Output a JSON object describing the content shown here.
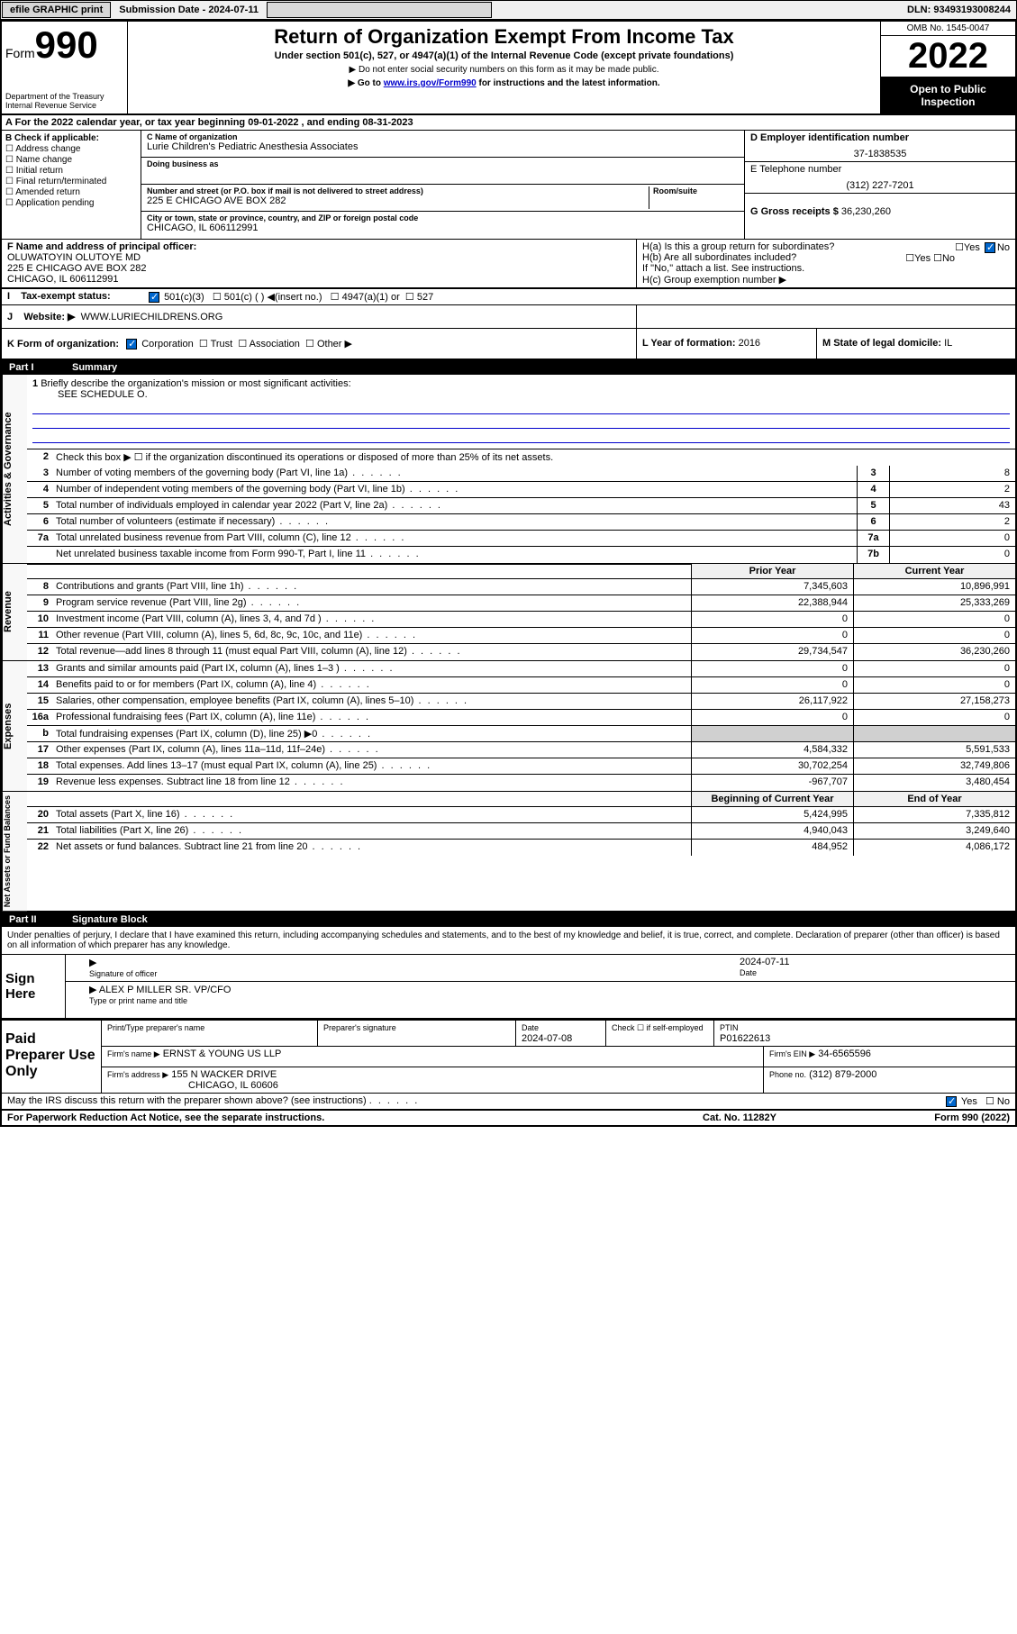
{
  "topbar": {
    "efile": "efile GRAPHIC print",
    "submission": "Submission Date - 2024-07-11",
    "dln": "DLN: 93493193008244"
  },
  "header": {
    "form_label": "Form",
    "form_num": "990",
    "dept": "Department of the Treasury",
    "irs": "Internal Revenue Service",
    "title": "Return of Organization Exempt From Income Tax",
    "subtitle": "Under section 501(c), 527, or 4947(a)(1) of the Internal Revenue Code (except private foundations)",
    "note1": "▶ Do not enter social security numbers on this form as it may be made public.",
    "note2_pre": "▶ Go to ",
    "note2_link": "www.irs.gov/Form990",
    "note2_post": " for instructions and the latest information.",
    "omb": "OMB No. 1545-0047",
    "year": "2022",
    "open_public": "Open to Public Inspection"
  },
  "row_a": "For the 2022 calendar year, or tax year beginning 09-01-2022    , and ending 08-31-2023",
  "section_b": {
    "header": "B Check if applicable:",
    "items": [
      "Address change",
      "Name change",
      "Initial return",
      "Final return/terminated",
      "Amended return",
      "Application pending"
    ]
  },
  "section_c": {
    "name_lbl": "C Name of organization",
    "name_val": "Lurie Children's Pediatric Anesthesia Associates",
    "dba_lbl": "Doing business as",
    "dba_val": "",
    "street_lbl": "Number and street (or P.O. box if mail is not delivered to street address)",
    "room_lbl": "Room/suite",
    "street_val": "225 E CHICAGO AVE BOX 282",
    "city_lbl": "City or town, state or province, country, and ZIP or foreign postal code",
    "city_val": "CHICAGO, IL  606112991"
  },
  "section_d": {
    "ein_lbl": "D Employer identification number",
    "ein_val": "37-1838535",
    "phone_lbl": "E Telephone number",
    "phone_val": "(312) 227-7201",
    "gross_lbl": "G Gross receipts $",
    "gross_val": "36,230,260"
  },
  "section_f": {
    "lbl": "F Name and address of principal officer:",
    "name": "OLUWATOYIN OLUTOYE MD",
    "addr1": "225 E CHICAGO AVE BOX 282",
    "addr2": "CHICAGO, IL  606112991"
  },
  "section_h": {
    "ha": "H(a)  Is this a group return for subordinates?",
    "ha_ans": "No",
    "hb": "H(b)  Are all subordinates included?",
    "hb_note": "If \"No,\" attach a list. See instructions.",
    "hc": "H(c)  Group exemption number ▶"
  },
  "section_i": {
    "lbl": "Tax-exempt status:",
    "opt1": "501(c)(3)",
    "opt2": "501(c) (   ) ◀(insert no.)",
    "opt3": "4947(a)(1) or",
    "opt4": "527"
  },
  "section_j": {
    "lbl": "Website: ▶",
    "val": "WWW.LURIECHILDRENS.ORG"
  },
  "section_k": {
    "lbl": "K Form of organization:",
    "opts": [
      "Corporation",
      "Trust",
      "Association",
      "Other ▶"
    ],
    "l_lbl": "L Year of formation:",
    "l_val": "2016",
    "m_lbl": "M State of legal domicile:",
    "m_val": "IL"
  },
  "part1": {
    "name": "Part I",
    "title": "Summary",
    "line1_lbl": "Briefly describe the organization's mission or most significant activities:",
    "line1_val": "SEE SCHEDULE O.",
    "line2": "Check this box ▶ ☐  if the organization discontinued its operations or disposed of more than 25% of its net assets.",
    "vtab_ag": "Activities & Governance",
    "vtab_rev": "Revenue",
    "vtab_exp": "Expenses",
    "vtab_na": "Net Assets or Fund Balances",
    "lines_ag": [
      {
        "n": "3",
        "d": "Number of voting members of the governing body (Part VI, line 1a)",
        "b": "3",
        "v": "8"
      },
      {
        "n": "4",
        "d": "Number of independent voting members of the governing body (Part VI, line 1b)",
        "b": "4",
        "v": "2"
      },
      {
        "n": "5",
        "d": "Total number of individuals employed in calendar year 2022 (Part V, line 2a)",
        "b": "5",
        "v": "43"
      },
      {
        "n": "6",
        "d": "Total number of volunteers (estimate if necessary)",
        "b": "6",
        "v": "2"
      },
      {
        "n": "7a",
        "d": "Total unrelated business revenue from Part VIII, column (C), line 12",
        "b": "7a",
        "v": "0"
      },
      {
        "n": "",
        "d": "Net unrelated business taxable income from Form 990-T, Part I, line 11",
        "b": "7b",
        "v": "0"
      }
    ],
    "col_prior": "Prior Year",
    "col_current": "Current Year",
    "col_boy": "Beginning of Current Year",
    "col_eoy": "End of Year",
    "lines_rev": [
      {
        "n": "8",
        "d": "Contributions and grants (Part VIII, line 1h)",
        "p": "7,345,603",
        "c": "10,896,991"
      },
      {
        "n": "9",
        "d": "Program service revenue (Part VIII, line 2g)",
        "p": "22,388,944",
        "c": "25,333,269"
      },
      {
        "n": "10",
        "d": "Investment income (Part VIII, column (A), lines 3, 4, and 7d )",
        "p": "0",
        "c": "0"
      },
      {
        "n": "11",
        "d": "Other revenue (Part VIII, column (A), lines 5, 6d, 8c, 9c, 10c, and 11e)",
        "p": "0",
        "c": "0"
      },
      {
        "n": "12",
        "d": "Total revenue—add lines 8 through 11 (must equal Part VIII, column (A), line 12)",
        "p": "29,734,547",
        "c": "36,230,260"
      }
    ],
    "lines_exp": [
      {
        "n": "13",
        "d": "Grants and similar amounts paid (Part IX, column (A), lines 1–3 )",
        "p": "0",
        "c": "0"
      },
      {
        "n": "14",
        "d": "Benefits paid to or for members (Part IX, column (A), line 4)",
        "p": "0",
        "c": "0"
      },
      {
        "n": "15",
        "d": "Salaries, other compensation, employee benefits (Part IX, column (A), lines 5–10)",
        "p": "26,117,922",
        "c": "27,158,273"
      },
      {
        "n": "16a",
        "d": "Professional fundraising fees (Part IX, column (A), line 11e)",
        "p": "0",
        "c": "0"
      },
      {
        "n": "b",
        "d": "Total fundraising expenses (Part IX, column (D), line 25) ▶0",
        "p": "",
        "c": "",
        "shaded": true
      },
      {
        "n": "17",
        "d": "Other expenses (Part IX, column (A), lines 11a–11d, 11f–24e)",
        "p": "4,584,332",
        "c": "5,591,533"
      },
      {
        "n": "18",
        "d": "Total expenses. Add lines 13–17 (must equal Part IX, column (A), line 25)",
        "p": "30,702,254",
        "c": "32,749,806"
      },
      {
        "n": "19",
        "d": "Revenue less expenses. Subtract line 18 from line 12",
        "p": "-967,707",
        "c": "3,480,454"
      }
    ],
    "lines_na": [
      {
        "n": "20",
        "d": "Total assets (Part X, line 16)",
        "p": "5,424,995",
        "c": "7,335,812"
      },
      {
        "n": "21",
        "d": "Total liabilities (Part X, line 26)",
        "p": "4,940,043",
        "c": "3,249,640"
      },
      {
        "n": "22",
        "d": "Net assets or fund balances. Subtract line 21 from line 20",
        "p": "484,952",
        "c": "4,086,172"
      }
    ]
  },
  "part2": {
    "name": "Part II",
    "title": "Signature Block",
    "declaration": "Under penalties of perjury, I declare that I have examined this return, including accompanying schedules and statements, and to the best of my knowledge and belief, it is true, correct, and complete. Declaration of preparer (other than officer) is based on all information of which preparer has any knowledge.",
    "sign_here": "Sign Here",
    "sig_officer": "Signature of officer",
    "sig_date": "2024-07-11",
    "date_lbl": "Date",
    "officer_name": "ALEX P MILLER  SR. VP/CFO",
    "officer_name_lbl": "Type or print name and title",
    "paid_prep": "Paid Preparer Use Only",
    "prep_name_lbl": "Print/Type preparer's name",
    "prep_sig_lbl": "Preparer's signature",
    "prep_date_lbl": "Date",
    "prep_date": "2024-07-08",
    "prep_check_lbl": "Check ☐ if self-employed",
    "ptin_lbl": "PTIN",
    "ptin_val": "P01622613",
    "firm_name_lbl": "Firm's name    ▶",
    "firm_name": "ERNST & YOUNG US LLP",
    "firm_ein_lbl": "Firm's EIN ▶",
    "firm_ein": "34-6565596",
    "firm_addr_lbl": "Firm's address ▶",
    "firm_addr1": "155 N WACKER DRIVE",
    "firm_addr2": "CHICAGO, IL  60606",
    "firm_phone_lbl": "Phone no.",
    "firm_phone": "(312) 879-2000",
    "discuss": "May the IRS discuss this return with the preparer shown above? (see instructions)",
    "discuss_ans": "Yes"
  },
  "footer": {
    "pra": "For Paperwork Reduction Act Notice, see the separate instructions.",
    "cat": "Cat. No. 11282Y",
    "form": "Form 990 (2022)"
  }
}
